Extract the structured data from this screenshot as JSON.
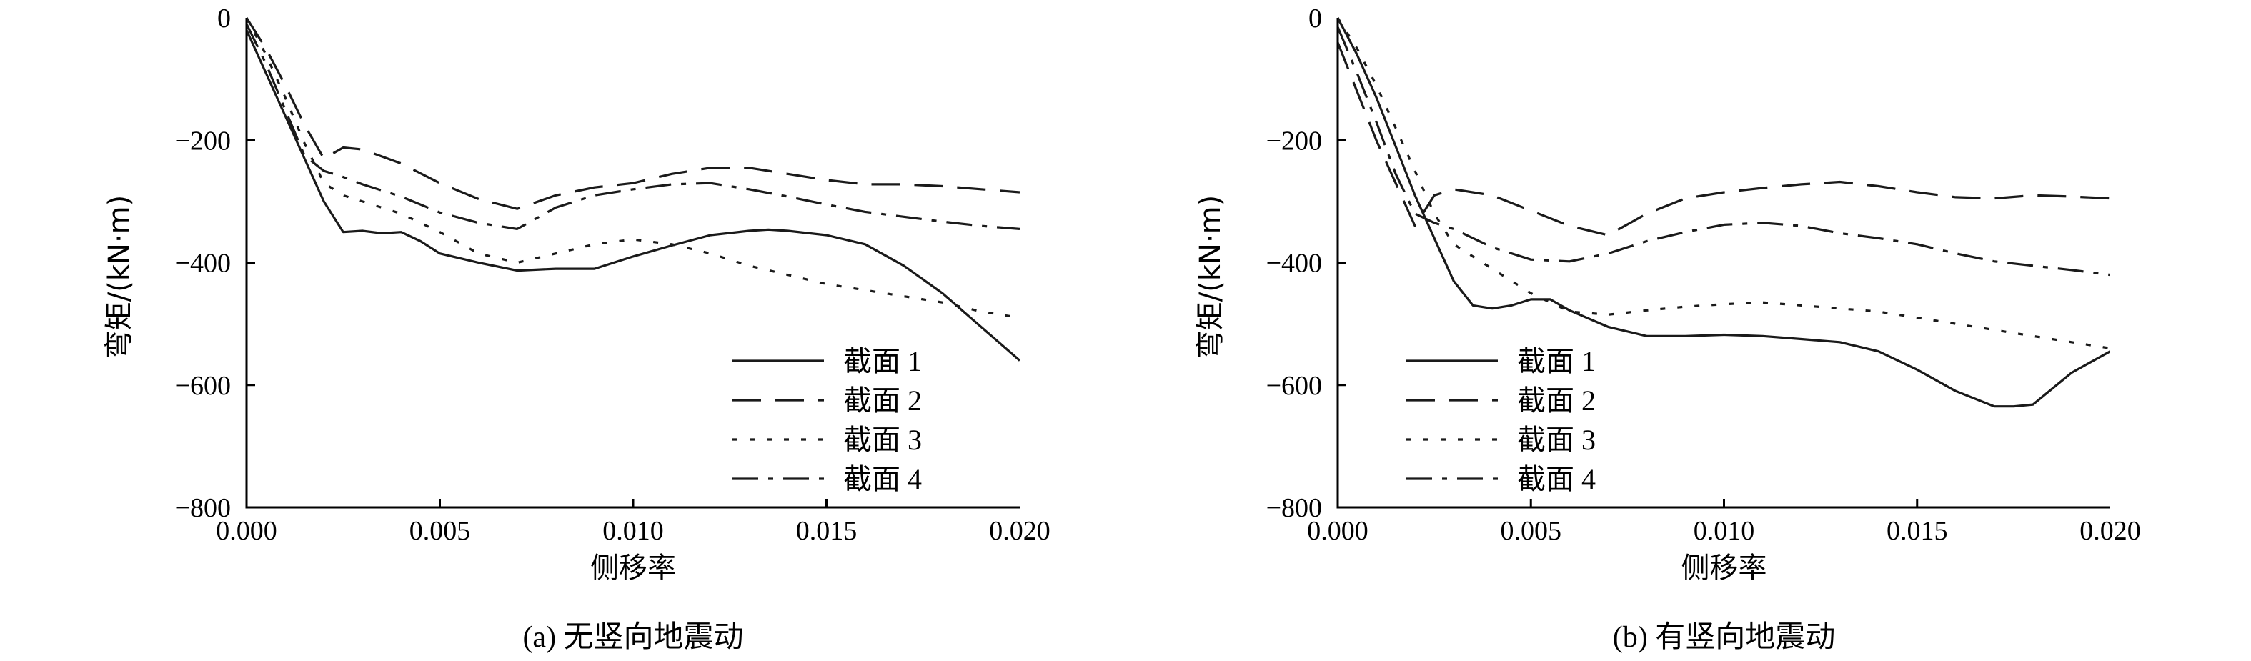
{
  "chart_data": [
    {
      "type": "line",
      "caption": "(a) 无竖向地震动",
      "xlabel": "侧移率",
      "ylabel": "弯矩/(kN·m)",
      "xlim": [
        0,
        0.02
      ],
      "ylim": [
        -800,
        0
      ],
      "xticks": [
        "0.000",
        "0.005",
        "0.010",
        "0.015",
        "0.020"
      ],
      "yticks": [
        "0",
        "-200",
        "-400",
        "-600",
        "-800"
      ],
      "grid": false,
      "legend_position": "bottom-right",
      "series": [
        {
          "name": "截面 1",
          "style": "solid",
          "x": [
            0,
            0.0005,
            0.001,
            0.0015,
            0.002,
            0.0025,
            0.003,
            0.0035,
            0.004,
            0.0045,
            0.005,
            0.006,
            0.007,
            0.008,
            0.009,
            0.01,
            0.011,
            0.012,
            0.013,
            0.0135,
            0.014,
            0.015,
            0.016,
            0.017,
            0.018,
            0.019,
            0.02
          ],
          "y": [
            -20,
            -90,
            -160,
            -230,
            -300,
            -350,
            -348,
            -352,
            -350,
            -365,
            -385,
            -400,
            -413,
            -410,
            -410,
            -390,
            -372,
            -355,
            -348,
            -346,
            -348,
            -355,
            -370,
            -405,
            -450,
            -505,
            -560
          ]
        },
        {
          "name": "截面 2",
          "style": "dashed",
          "x": [
            0,
            0.0005,
            0.001,
            0.0015,
            0.002,
            0.0025,
            0.003,
            0.004,
            0.005,
            0.006,
            0.007,
            0.008,
            0.009,
            0.01,
            0.011,
            0.012,
            0.013,
            0.014,
            0.015,
            0.016,
            0.017,
            0.018,
            0.019,
            0.02
          ],
          "y": [
            0,
            -50,
            -110,
            -175,
            -230,
            -212,
            -215,
            -238,
            -270,
            -296,
            -312,
            -290,
            -277,
            -270,
            -255,
            -245,
            -245,
            -255,
            -265,
            -272,
            -272,
            -275,
            -280,
            -285
          ]
        },
        {
          "name": "截面 3",
          "style": "dotted",
          "x": [
            0,
            0.0005,
            0.001,
            0.0015,
            0.002,
            0.0025,
            0.003,
            0.004,
            0.005,
            0.006,
            0.007,
            0.008,
            0.009,
            0.01,
            0.011,
            0.012,
            0.013,
            0.014,
            0.015,
            0.016,
            0.017,
            0.018,
            0.019,
            0.02
          ],
          "y": [
            0,
            -60,
            -130,
            -205,
            -270,
            -290,
            -300,
            -320,
            -350,
            -385,
            -400,
            -385,
            -370,
            -362,
            -370,
            -385,
            -405,
            -420,
            -435,
            -445,
            -455,
            -465,
            -480,
            -490
          ]
        },
        {
          "name": "截面 4",
          "style": "dashdot",
          "x": [
            0,
            0.0005,
            0.001,
            0.0015,
            0.002,
            0.0025,
            0.003,
            0.004,
            0.005,
            0.006,
            0.007,
            0.008,
            0.009,
            0.01,
            0.011,
            0.012,
            0.013,
            0.014,
            0.015,
            0.016,
            0.017,
            0.018,
            0.019,
            0.02
          ],
          "y": [
            -10,
            -75,
            -150,
            -225,
            -250,
            -260,
            -272,
            -292,
            -318,
            -335,
            -345,
            -310,
            -290,
            -280,
            -272,
            -270,
            -280,
            -292,
            -305,
            -317,
            -325,
            -333,
            -340,
            -345
          ]
        }
      ]
    },
    {
      "type": "line",
      "caption": "(b) 有竖向地震动",
      "xlabel": "侧移率",
      "ylabel": "弯矩/(kN·m)",
      "xlim": [
        0,
        0.02
      ],
      "ylim": [
        -800,
        0
      ],
      "xticks": [
        "0.000",
        "0.005",
        "0.010",
        "0.015",
        "0.020"
      ],
      "yticks": [
        "0",
        "-200",
        "-400",
        "-600",
        "-800"
      ],
      "grid": false,
      "legend_position": "bottom-left",
      "series": [
        {
          "name": "截面 1",
          "style": "solid",
          "x": [
            0,
            0.0005,
            0.001,
            0.0015,
            0.002,
            0.0025,
            0.003,
            0.0035,
            0.004,
            0.0045,
            0.005,
            0.0055,
            0.006,
            0.007,
            0.008,
            0.009,
            0.01,
            0.011,
            0.012,
            0.013,
            0.014,
            0.015,
            0.016,
            0.017,
            0.0175,
            0.018,
            0.019,
            0.02
          ],
          "y": [
            0,
            -60,
            -130,
            -210,
            -290,
            -360,
            -430,
            -470,
            -475,
            -470,
            -460,
            -460,
            -478,
            -505,
            -520,
            -520,
            -518,
            -520,
            -525,
            -530,
            -545,
            -575,
            -610,
            -635,
            -635,
            -632,
            -580,
            -545
          ]
        },
        {
          "name": "截面 2",
          "style": "dashed",
          "x": [
            0,
            0.0005,
            0.001,
            0.0015,
            0.002,
            0.0025,
            0.003,
            0.004,
            0.005,
            0.006,
            0.007,
            0.008,
            0.009,
            0.01,
            0.011,
            0.012,
            0.013,
            0.014,
            0.015,
            0.016,
            0.017,
            0.018,
            0.019,
            0.02
          ],
          "y": [
            -40,
            -120,
            -200,
            -270,
            -340,
            -290,
            -280,
            -290,
            -315,
            -340,
            -355,
            -320,
            -295,
            -285,
            -278,
            -272,
            -268,
            -275,
            -285,
            -293,
            -295,
            -290,
            -292,
            -295
          ]
        },
        {
          "name": "截面 3",
          "style": "dotted",
          "x": [
            0,
            0.0005,
            0.001,
            0.0015,
            0.002,
            0.0025,
            0.003,
            0.004,
            0.005,
            0.006,
            0.007,
            0.008,
            0.009,
            0.01,
            0.011,
            0.012,
            0.013,
            0.014,
            0.015,
            0.016,
            0.017,
            0.018,
            0.019,
            0.02
          ],
          "y": [
            0,
            -50,
            -110,
            -180,
            -250,
            -320,
            -370,
            -410,
            -450,
            -480,
            -485,
            -478,
            -472,
            -468,
            -465,
            -470,
            -475,
            -480,
            -490,
            -500,
            -510,
            -520,
            -530,
            -540
          ]
        },
        {
          "name": "截面 4",
          "style": "dashdot",
          "x": [
            0,
            0.0005,
            0.001,
            0.0015,
            0.002,
            0.0025,
            0.003,
            0.004,
            0.005,
            0.006,
            0.007,
            0.008,
            0.009,
            0.01,
            0.011,
            0.012,
            0.013,
            0.014,
            0.015,
            0.016,
            0.017,
            0.018,
            0.019,
            0.02
          ],
          "y": [
            -15,
            -90,
            -170,
            -255,
            -320,
            -335,
            -345,
            -375,
            -395,
            -398,
            -385,
            -365,
            -350,
            -338,
            -335,
            -340,
            -352,
            -360,
            -370,
            -385,
            -398,
            -405,
            -412,
            -420
          ]
        }
      ]
    }
  ]
}
